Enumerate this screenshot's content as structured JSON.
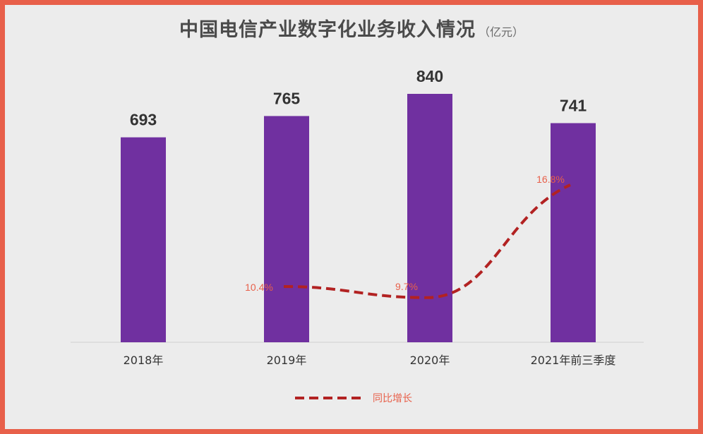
{
  "chart_data": {
    "type": "bar",
    "title": "中国电信产业数字化业务收入情况",
    "unit": "（亿元）",
    "categories": [
      "2018年",
      "2019年",
      "2020年",
      "2021年前三季度"
    ],
    "values": [
      693,
      765,
      840,
      741
    ],
    "value_labels": [
      "693",
      "765",
      "840",
      "741"
    ],
    "ylim": [
      0,
      840
    ],
    "bar_color": "#7030a0",
    "series": [
      {
        "name": "同比增长",
        "type": "line",
        "style": "dashed",
        "color": "#b22222",
        "label_color": "#e8604a",
        "values": [
          null,
          10.4,
          9.7,
          16.8
        ],
        "value_labels": [
          null,
          "10.4%",
          "9.7%",
          "16.8%"
        ],
        "ylim": [
          0,
          25
        ]
      }
    ],
    "legend": {
      "position": "bottom",
      "entries": [
        "同比增长"
      ]
    }
  }
}
